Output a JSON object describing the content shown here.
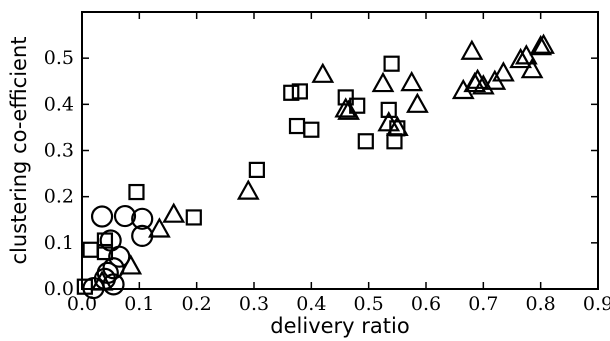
{
  "chart_data": {
    "type": "scatter",
    "title": "",
    "xlabel": "delivery ratio",
    "ylabel": "clustering co-efficient",
    "xlim": [
      0.0,
      0.9
    ],
    "ylim": [
      0.0,
      0.6
    ],
    "x_ticks": [
      "0.0",
      "0.1",
      "0.2",
      "0.3",
      "0.4",
      "0.5",
      "0.6",
      "0.7",
      "0.8",
      "0.9"
    ],
    "x_tick_values": [
      0.0,
      0.1,
      0.2,
      0.3,
      0.4,
      0.5,
      0.6,
      0.7,
      0.8,
      0.9
    ],
    "y_ticks": [
      "0.0",
      "0.1",
      "0.2",
      "0.3",
      "0.4",
      "0.5"
    ],
    "y_tick_values": [
      0.0,
      0.1,
      0.2,
      0.3,
      0.4,
      0.5
    ],
    "grid": false,
    "legend": "none",
    "series": [
      {
        "marker": "circle",
        "points": [
          [
            0.035,
            0.157
          ],
          [
            0.075,
            0.158
          ],
          [
            0.105,
            0.152
          ],
          [
            0.105,
            0.115
          ],
          [
            0.05,
            0.105
          ],
          [
            0.055,
            0.045
          ],
          [
            0.065,
            0.07
          ],
          [
            0.04,
            0.022
          ],
          [
            0.045,
            0.035
          ],
          [
            0.02,
            0.002
          ],
          [
            0.055,
            0.01
          ]
        ]
      },
      {
        "marker": "square",
        "points": [
          [
            0.015,
            0.085
          ],
          [
            0.04,
            0.105
          ],
          [
            0.04,
            0.08
          ],
          [
            0.095,
            0.21
          ],
          [
            0.195,
            0.155
          ],
          [
            0.305,
            0.258
          ],
          [
            0.365,
            0.425
          ],
          [
            0.38,
            0.428
          ],
          [
            0.375,
            0.353
          ],
          [
            0.4,
            0.345
          ],
          [
            0.46,
            0.415
          ],
          [
            0.48,
            0.397
          ],
          [
            0.495,
            0.32
          ],
          [
            0.535,
            0.388
          ],
          [
            0.54,
            0.488
          ],
          [
            0.545,
            0.32
          ],
          [
            0.55,
            0.348
          ],
          [
            0.005,
            0.005
          ]
        ]
      },
      {
        "marker": "triangle",
        "points": [
          [
            0.035,
            0.015
          ],
          [
            0.085,
            0.05
          ],
          [
            0.135,
            0.13
          ],
          [
            0.16,
            0.162
          ],
          [
            0.29,
            0.212
          ],
          [
            0.42,
            0.465
          ],
          [
            0.46,
            0.39
          ],
          [
            0.465,
            0.385
          ],
          [
            0.525,
            0.445
          ],
          [
            0.535,
            0.36
          ],
          [
            0.55,
            0.35
          ],
          [
            0.575,
            0.447
          ],
          [
            0.585,
            0.4
          ],
          [
            0.665,
            0.43
          ],
          [
            0.68,
            0.515
          ],
          [
            0.685,
            0.445
          ],
          [
            0.69,
            0.452
          ],
          [
            0.7,
            0.44
          ],
          [
            0.72,
            0.45
          ],
          [
            0.735,
            0.468
          ],
          [
            0.765,
            0.497
          ],
          [
            0.775,
            0.505
          ],
          [
            0.785,
            0.475
          ],
          [
            0.8,
            0.525
          ],
          [
            0.805,
            0.528
          ]
        ]
      }
    ]
  }
}
